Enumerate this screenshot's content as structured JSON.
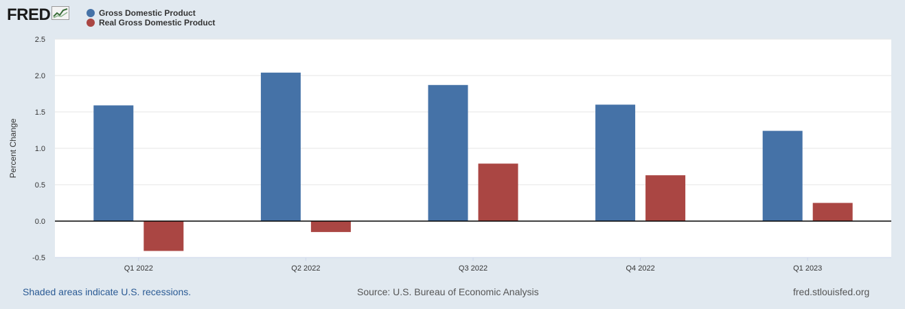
{
  "logo": {
    "text": "FRED",
    "icon": "fred-line-chart-icon"
  },
  "legend": [
    {
      "label": "Gross Domestic Product",
      "color": "#4572a7"
    },
    {
      "label": "Real Gross Domestic Product",
      "color": "#aa4643"
    }
  ],
  "footer": {
    "note": "Shaded areas indicate U.S. recessions.",
    "source": "Source: U.S. Bureau of Economic Analysis",
    "site": "fred.stlouisfed.org"
  },
  "chart_data": {
    "type": "bar",
    "ylabel": "Percent Change",
    "xlabel": "",
    "ylim": [
      -0.5,
      2.5
    ],
    "yticks": [
      "2.5",
      "2.0",
      "1.5",
      "1.0",
      "0.5",
      "0.0",
      "-0.5"
    ],
    "categories": [
      "Q1 2022",
      "Q2 2022",
      "Q3 2022",
      "Q4 2022",
      "Q1 2023"
    ],
    "series": [
      {
        "name": "Gross Domestic Product",
        "color": "#4572a7",
        "values": [
          1.59,
          2.04,
          1.87,
          1.6,
          1.24
        ]
      },
      {
        "name": "Real Gross Domestic Product",
        "color": "#aa4643",
        "values": [
          -0.41,
          -0.15,
          0.79,
          0.63,
          0.25
        ]
      }
    ],
    "grid": true,
    "legend_position": "top-left"
  }
}
